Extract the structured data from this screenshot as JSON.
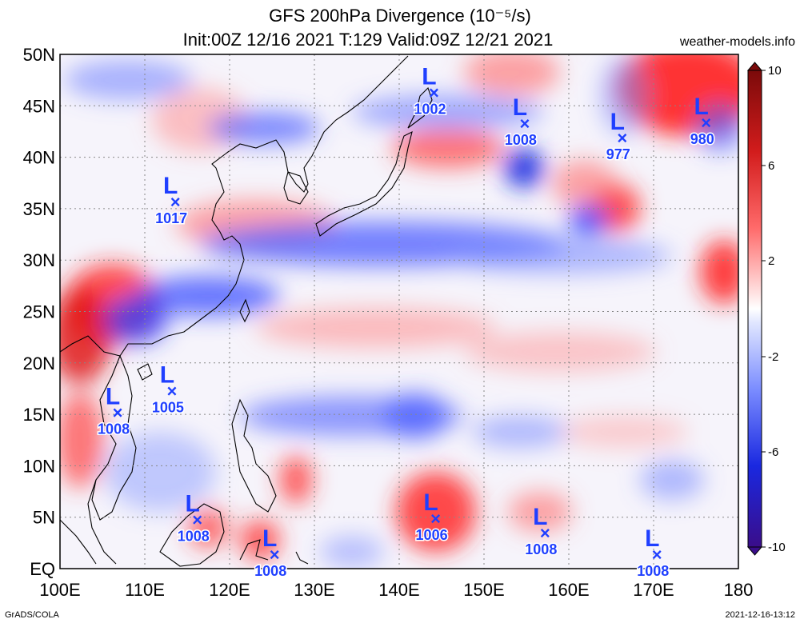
{
  "title": {
    "line1": "GFS 200hPa Divergence (10⁻⁵/s)",
    "line2": "Init:00Z 12/16 2021 T:129 Valid:09Z 12/21 2021"
  },
  "site": "weather-models.info",
  "credit": "GrADS/COLA",
  "stamp": "2021-12-16-13:12",
  "lat_labels": [
    "50N",
    "45N",
    "40N",
    "35N",
    "30N",
    "25N",
    "20N",
    "15N",
    "10N",
    "5N",
    "EQ"
  ],
  "lon_labels": [
    "100E",
    "110E",
    "120E",
    "130E",
    "140E",
    "150E",
    "160E",
    "170E",
    "180"
  ],
  "colorbar": {
    "labels": [
      "10",
      "6",
      "2",
      "-2",
      "-6",
      "-10"
    ],
    "colors": [
      "#7b0a0a",
      "#c41818",
      "#ff2a2a",
      "#ff8a8a",
      "#ffd4d4",
      "#ffffff",
      "#d4dcff",
      "#8a9cff",
      "#2a3cff",
      "#1515b8",
      "#3a0d8a"
    ]
  },
  "lows": [
    {
      "lon": 144.1,
      "lat": 46.3,
      "pressure": "1002"
    },
    {
      "lon": 154.8,
      "lat": 43.3,
      "pressure": "1008"
    },
    {
      "lon": 166.3,
      "lat": 41.9,
      "pressure": "977"
    },
    {
      "lon": 176.2,
      "lat": 43.4,
      "pressure": "980"
    },
    {
      "lon": 113.6,
      "lat": 35.7,
      "pressure": "1017"
    },
    {
      "lon": 113.2,
      "lat": 17.3,
      "pressure": "1005"
    },
    {
      "lon": 106.8,
      "lat": 15.2,
      "pressure": "1008"
    },
    {
      "lon": 116.2,
      "lat": 4.8,
      "pressure": "1008"
    },
    {
      "lon": 125.3,
      "lat": 1.4,
      "pressure": "1008"
    },
    {
      "lon": 144.3,
      "lat": 4.9,
      "pressure": "1006"
    },
    {
      "lon": 157.2,
      "lat": 3.5,
      "pressure": "1008"
    },
    {
      "lon": 170.4,
      "lat": 1.4,
      "pressure": "1008"
    }
  ],
  "colors": {
    "low_marker": "#1f3fff",
    "grid": "#888888"
  }
}
